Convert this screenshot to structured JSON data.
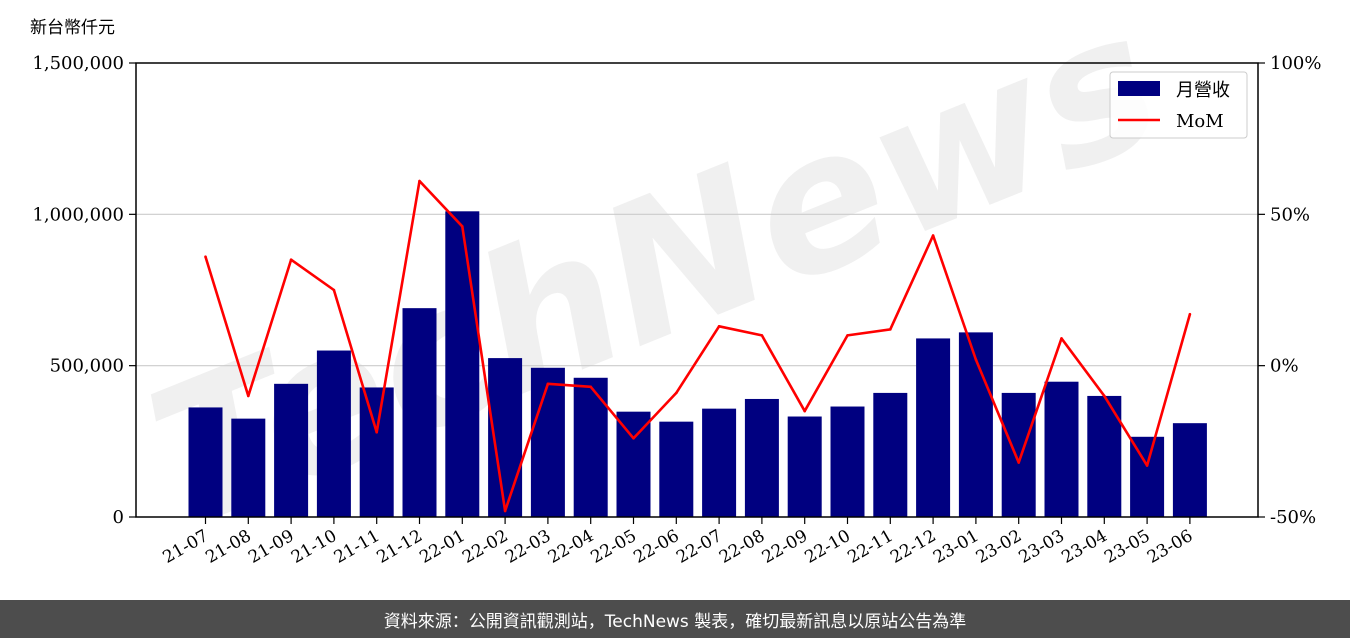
{
  "chart_data": {
    "type": "bar",
    "unit_label": "新台幣仟元",
    "categories": [
      "21-07",
      "21-08",
      "21-09",
      "21-10",
      "21-11",
      "21-12",
      "22-01",
      "22-02",
      "22-03",
      "22-04",
      "22-05",
      "22-06",
      "22-07",
      "22-08",
      "22-09",
      "22-10",
      "22-11",
      "22-12",
      "23-01",
      "23-02",
      "23-03",
      "23-04",
      "23-05",
      "23-06"
    ],
    "series": [
      {
        "name": "月營收",
        "type": "bar",
        "axis": "left",
        "color": "#000080",
        "values": [
          362000,
          325000,
          440000,
          550000,
          428000,
          690000,
          1010000,
          525000,
          493000,
          460000,
          348000,
          315000,
          358000,
          390000,
          332000,
          365000,
          410000,
          590000,
          610000,
          410000,
          447000,
          400000,
          265000,
          310000
        ]
      },
      {
        "name": "MoM",
        "type": "line",
        "axis": "right",
        "color": "#ff0000",
        "values": [
          36,
          -10,
          35,
          25,
          -22,
          61,
          46,
          -48,
          -6,
          -7,
          -24,
          -9,
          13,
          10,
          -15,
          10,
          12,
          43,
          2,
          -32,
          9,
          -10,
          -33,
          17
        ]
      }
    ],
    "left_axis": {
      "ylim": [
        0,
        1500000
      ],
      "ticks": [
        "0",
        "500,000",
        "1,000,000",
        "1,500,000"
      ]
    },
    "right_axis": {
      "ylim": [
        -50,
        100
      ],
      "ticks": [
        "-50%",
        "0%",
        "50%",
        "100%"
      ]
    },
    "grid": "horizontal",
    "legend_position": "top-right"
  },
  "watermark": "TechNews",
  "footer": {
    "text": "資料來源：公開資訊觀測站，TechNews 製表，確切最新訊息以原站公告為準"
  }
}
